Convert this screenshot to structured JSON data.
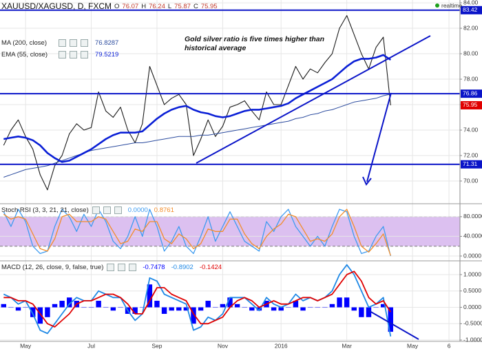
{
  "chart_data": [
    {
      "type": "line",
      "title": "XAUUSD/XAGUSD, D, FXCM",
      "ohlc": [
        {
          "label": "O",
          "value": 76.07
        },
        {
          "label": "H",
          "value": 76.24
        },
        {
          "label": "L",
          "value": 75.87
        },
        {
          "label": "C",
          "value": 75.95
        }
      ],
      "status": "realtime",
      "annotation": "Gold silver ratio is five times higher than historical average",
      "ylim": [
        68.27,
        84.22
      ],
      "yticks": [
        {
          "value": 70,
          "label": "70.00"
        },
        {
          "value": 72,
          "label": "72.00"
        },
        {
          "value": 74,
          "label": "74.00"
        },
        {
          "value": 76,
          "label": "76.00"
        },
        {
          "value": 78,
          "label": "78.00"
        },
        {
          "value": 80,
          "label": "80.00"
        },
        {
          "value": 82,
          "label": "82.00"
        },
        {
          "value": 84,
          "label": "84.00"
        }
      ],
      "grid": true,
      "levels": [
        83.42,
        76.86,
        71.31
      ],
      "level_color": "#0a14c8",
      "last_color": "#e00000",
      "series": [
        {
          "color": "#1a1a1a",
          "values": [
            72.8,
            74.0,
            74.8,
            73.5,
            72.5,
            70.5,
            69.3,
            71.2,
            72.0,
            73.7,
            74.5,
            74.0,
            74.2,
            77.0,
            75.5,
            75.0,
            75.8,
            74.0,
            73.0,
            74.5,
            79.0,
            77.5,
            76.0,
            76.5,
            76.8,
            76.0,
            72.0,
            73.3,
            74.8,
            73.5,
            74.3,
            75.8,
            76.0,
            76.3,
            75.5,
            74.8,
            77.0,
            76.0,
            76.0,
            77.5,
            79.0,
            78.0,
            78.8,
            78.5,
            79.3,
            80.0,
            82.0,
            83.0,
            81.5,
            80.0,
            78.8,
            80.5,
            81.3,
            75.95,
            null,
            null,
            null,
            null,
            null,
            null,
            null,
            null,
            null
          ]
        },
        {
          "name": "MA (200, close)",
          "color": "#2b4b9e",
          "values": [
            70.3,
            70.5,
            70.7,
            70.9,
            71.0,
            71.1,
            71.2,
            71.4,
            71.6,
            71.8,
            72.0,
            72.2,
            72.4,
            72.5,
            72.6,
            72.7,
            72.8,
            72.9,
            73.0,
            73.0,
            73.1,
            73.2,
            73.3,
            73.4,
            73.5,
            73.5,
            73.5,
            73.6,
            73.6,
            73.7,
            73.8,
            73.9,
            74.0,
            74.1,
            74.2,
            74.3,
            74.4,
            74.5,
            74.6,
            74.7,
            74.9,
            75.0,
            75.2,
            75.3,
            75.5,
            75.6,
            75.8,
            76.0,
            76.2,
            76.3,
            76.4,
            76.5,
            76.7,
            76.8287,
            null,
            null,
            null,
            null,
            null,
            null,
            null,
            null,
            null
          ]
        },
        {
          "name": "EMA (55, close)",
          "color": "#0a1fd6",
          "values": [
            73.3,
            73.4,
            73.5,
            73.4,
            73.2,
            72.8,
            72.2,
            71.8,
            71.5,
            71.6,
            71.9,
            72.2,
            72.5,
            72.9,
            73.3,
            73.6,
            73.8,
            73.8,
            73.8,
            73.9,
            74.4,
            74.9,
            75.3,
            75.6,
            75.8,
            75.9,
            75.6,
            75.4,
            75.3,
            75.1,
            75.0,
            75.1,
            75.3,
            75.5,
            75.6,
            75.6,
            75.7,
            75.8,
            75.9,
            76.1,
            76.5,
            76.8,
            77.1,
            77.4,
            77.7,
            78.0,
            78.5,
            79.0,
            79.4,
            79.6,
            79.6,
            79.7,
            79.9,
            79.5219,
            null,
            null,
            null,
            null,
            null,
            null,
            null,
            null,
            null
          ]
        }
      ]
    },
    {
      "type": "line",
      "title": "Stoch RSI (3, 3, 21, 21, close)",
      "ylim": [
        -8.4,
        105
      ],
      "yticks": [
        {
          "value": 0,
          "label": "0.0000"
        },
        {
          "value": 40,
          "label": "40.0000"
        },
        {
          "value": 80,
          "label": "80.0000"
        }
      ],
      "grid": true,
      "band": {
        "range": [
          20,
          80
        ],
        "color": "#dcc0f0"
      },
      "series": [
        {
          "color": "#3d9bf0",
          "last_label": "0.0000",
          "values": [
            90,
            60,
            95,
            70,
            20,
            5,
            10,
            60,
            95,
            80,
            50,
            85,
            60,
            95,
            70,
            30,
            15,
            40,
            80,
            40,
            95,
            60,
            10,
            30,
            60,
            20,
            5,
            40,
            80,
            30,
            60,
            90,
            60,
            30,
            20,
            10,
            70,
            50,
            80,
            95,
            60,
            40,
            20,
            40,
            20,
            60,
            95,
            90,
            40,
            5,
            10,
            40,
            60,
            0,
            null,
            null,
            null,
            null,
            null,
            null,
            null,
            null,
            null
          ]
        },
        {
          "color": "#f28c28",
          "values": [
            85,
            75,
            80,
            75,
            45,
            15,
            10,
            35,
            80,
            85,
            70,
            70,
            70,
            80,
            75,
            50,
            25,
            30,
            55,
            50,
            70,
            70,
            35,
            25,
            45,
            35,
            15,
            25,
            55,
            50,
            50,
            75,
            75,
            45,
            25,
            15,
            40,
            55,
            65,
            85,
            80,
            55,
            30,
            35,
            30,
            45,
            80,
            95,
            60,
            20,
            8,
            25,
            45,
            0.8761,
            null,
            null,
            null,
            null,
            null,
            null,
            null,
            null,
            null
          ]
        }
      ]
    },
    {
      "type": "line",
      "title": "MACD (12, 26, close, 9, false, true)",
      "categories": [
        null,
        null,
        null,
        "May",
        null,
        null,
        null,
        null,
        null,
        null,
        null,
        null,
        "Jul",
        null,
        null,
        null,
        null,
        null,
        null,
        null,
        null,
        "Sep",
        null,
        null,
        null,
        null,
        null,
        null,
        null,
        null,
        "Nov",
        null,
        null,
        null,
        null,
        null,
        null,
        null,
        "2016",
        null,
        null,
        null,
        null,
        null,
        null,
        null,
        null,
        "Mar",
        null,
        null,
        null,
        null,
        null,
        null,
        null,
        null,
        "May",
        null,
        null,
        null,
        null,
        "6",
        null
      ],
      "ylim": [
        -1.02,
        1.4
      ],
      "yticks": [
        {
          "value": -1,
          "label": "-1.0000"
        },
        {
          "value": -0.5,
          "label": "-0.5000"
        },
        {
          "value": 0,
          "label": "0.0000"
        },
        {
          "value": 0.5,
          "label": "0.5000"
        },
        {
          "value": 1,
          "label": "1.0000"
        }
      ],
      "grid": true,
      "series": [
        {
          "type": "bar",
          "color": "#0000ff",
          "values": [
            0.1,
            0,
            -0.1,
            0,
            -0.3,
            -0.5,
            -0.3,
            0.1,
            0.2,
            0.3,
            0.2,
            0,
            0,
            0.2,
            0,
            -0.1,
            0,
            -0.2,
            -0.2,
            0,
            0.7,
            0.2,
            -0.2,
            -0.1,
            -0.1,
            -0.1,
            -0.5,
            -0.1,
            0.2,
            0,
            0.1,
            0.3,
            0.1,
            0,
            -0.1,
            -0.1,
            0.2,
            -0.1,
            -0.1,
            0,
            0.2,
            -0.1,
            0,
            0,
            0,
            0.1,
            0.3,
            0.3,
            -0.1,
            -0.3,
            -0.3,
            0,
            0.1,
            -0.7478,
            null,
            null,
            null,
            null,
            null,
            null,
            null,
            null,
            null
          ]
        },
        {
          "color": "#1e88e5",
          "values": [
            0.4,
            0.3,
            0.1,
            0.2,
            -0.2,
            -0.7,
            -0.8,
            -0.5,
            -0.2,
            0.1,
            0.3,
            0.2,
            0.2,
            0.5,
            0.4,
            0.3,
            0.3,
            -0.1,
            -0.4,
            -0.2,
            0.9,
            0.8,
            0.4,
            0.3,
            0.2,
            0.1,
            -0.7,
            -0.6,
            -0.3,
            -0.4,
            -0.2,
            0.3,
            0.3,
            0.3,
            0.1,
            -0.1,
            0.3,
            0.1,
            0.0,
            0.1,
            0.4,
            0.2,
            0.3,
            0.2,
            0.3,
            0.5,
            1.0,
            1.3,
            1.0,
            0.5,
            0.0,
            0.1,
            0.3,
            -0.8902,
            null,
            null,
            null,
            null,
            null,
            null,
            null,
            null,
            null
          ]
        },
        {
          "color": "#e00000",
          "values": [
            0.3,
            0.3,
            0.2,
            0.2,
            0.1,
            -0.2,
            -0.5,
            -0.6,
            -0.4,
            -0.2,
            0.1,
            0.2,
            0.2,
            0.3,
            0.4,
            0.4,
            0.3,
            0.1,
            -0.2,
            -0.2,
            0.2,
            0.6,
            0.6,
            0.4,
            0.3,
            0.2,
            -0.2,
            -0.5,
            -0.5,
            -0.4,
            -0.3,
            0.0,
            0.2,
            0.3,
            0.2,
            0.0,
            0.1,
            0.2,
            0.1,
            0.1,
            0.2,
            0.3,
            0.3,
            0.2,
            0.3,
            0.4,
            0.7,
            1.0,
            1.1,
            0.8,
            0.3,
            0.1,
            0.2,
            -0.1424,
            null,
            null,
            null,
            null,
            null,
            null,
            null,
            null,
            null
          ]
        }
      ]
    }
  ]
}
